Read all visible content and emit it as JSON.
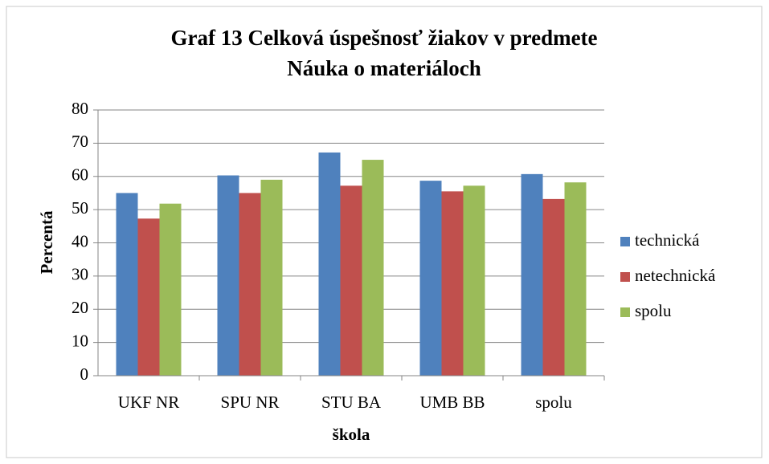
{
  "chart_data": {
    "type": "bar",
    "title": [
      "Graf 13 Celková úspešnosť žiakov v predmete",
      "Náuka o materiáloch"
    ],
    "x_label": "škola",
    "y_label": "Percentá",
    "categories": [
      "UKF NR",
      "SPU NR",
      "STU BA",
      "UMB BB",
      "spolu"
    ],
    "series": [
      {
        "name": "technická",
        "color": "#4f81bd",
        "values": [
          55,
          60.3,
          67.2,
          58.7,
          60.7
        ]
      },
      {
        "name": "netechnická",
        "color": "#c0504d",
        "values": [
          47.3,
          55,
          57.2,
          55.5,
          53.2
        ]
      },
      {
        "name": "spolu",
        "color": "#9bbb59",
        "values": [
          51.8,
          59,
          65,
          57.2,
          58.2
        ]
      }
    ],
    "ylim": [
      0,
      80
    ],
    "yticks": [
      0,
      10,
      20,
      30,
      40,
      50,
      60,
      70,
      80
    ],
    "grid": true,
    "legend": "right"
  }
}
